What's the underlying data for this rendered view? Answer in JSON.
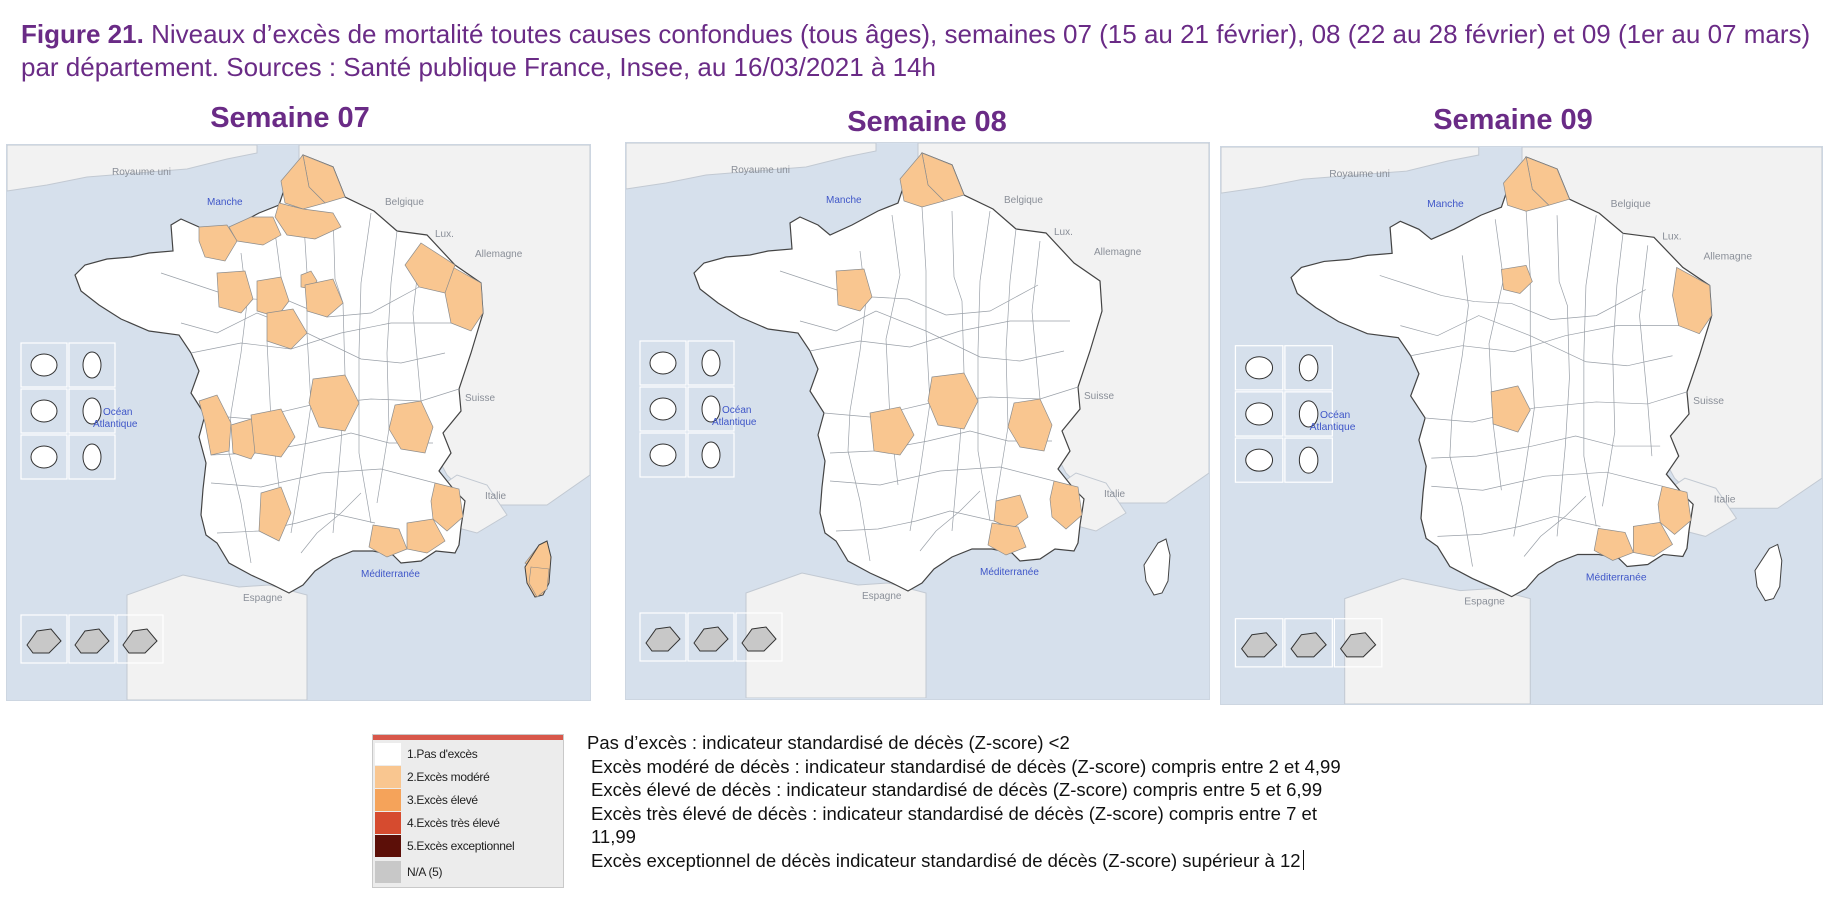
{
  "figure": {
    "label": "Figure 21.",
    "caption": "Niveaux d’excès de mortalité toutes causes confondues (tous âges), semaines 07 (15 au 21 février), 08 (22 au 28 février) et 09 (1er au 07 mars) par département. Sources : Santé publique France, Insee, au 16/03/2021 à 14h"
  },
  "colors": {
    "none": "#ffffff",
    "moderate": "#f9c690",
    "high": "#f5a35a",
    "very_high": "#d64b2f",
    "exceptional": "#5c0f08",
    "na": "#c8c8c8",
    "sea": "#d6e0ec",
    "land_other": "#f2f2f2",
    "title": "#6a2b86"
  },
  "geo_labels": {
    "uk": "Royaume uni",
    "manche": "Manche",
    "belgique": "Belgique",
    "lux": "Lux.",
    "allemagne": "Allemagne",
    "suisse": "Suisse",
    "ocean1": "Océan",
    "ocean2": "Atlantique",
    "italie": "Italie",
    "mediterranee": "Méditerranée",
    "espagne": "Espagne"
  },
  "maps": [
    {
      "title": "Semaine 07",
      "moderate_regions": [
        "Pas-de-Calais",
        "Nord",
        "Somme",
        "Calvados",
        "Manche",
        "Seine-Saint-Denis",
        "Sarthe",
        "Mayenne",
        "Indre-et-Loire",
        "Loiret",
        "Bas-Rhin",
        "Moselle",
        "Allier",
        "Charente-Maritime",
        "Charente",
        "Haute-Vienne",
        "Isère",
        "Haute-Garonne",
        "Bouches-du-Rhône",
        "Var",
        "Alpes-Maritimes",
        "Corse-du-Sud",
        "Haute-Corse"
      ]
    },
    {
      "title": "Semaine 08",
      "moderate_regions": [
        "Nord",
        "Pas-de-Calais",
        "Mayenne",
        "Haute-Vienne",
        "Allier",
        "Isère",
        "Vaucluse",
        "Bouches-du-Rhône",
        "Alpes-Maritimes"
      ]
    },
    {
      "title": "Semaine 09",
      "moderate_regions": [
        "Nord",
        "Pas-de-Calais",
        "Yvelines",
        "Bas-Rhin",
        "Indre",
        "Bouches-du-Rhône",
        "Var",
        "Alpes-Maritimes"
      ]
    }
  ],
  "legend": {
    "items": [
      {
        "label": "1.Pas d'excès",
        "color": "#ffffff"
      },
      {
        "label": "2.Excès modéré",
        "color": "#f9c690"
      },
      {
        "label": "3.Excès élevé",
        "color": "#f5a35a"
      },
      {
        "label": "4.Excès très élevé",
        "color": "#d64b2f"
      },
      {
        "label": "5.Excès exceptionnel",
        "color": "#5c0f08"
      },
      {
        "label": "N/A (5)",
        "color": "#c8c8c8"
      }
    ],
    "descriptions": [
      "Pas d’excès : indicateur standardisé de décès (Z-score) <2",
      "Excès modéré de décès : indicateur standardisé de décès (Z-score) compris entre 2 et 4,99",
      "Excès élevé de décès : indicateur standardisé de décès (Z-score) compris entre 5 et 6,99",
      "Excès très élevé de décès : indicateur standardisé de décès (Z-score) compris entre 7 et",
      "11,99",
      "Excès exceptionnel de décès indicateur standardisé de décès (Z-score) supérieur à 12"
    ]
  }
}
